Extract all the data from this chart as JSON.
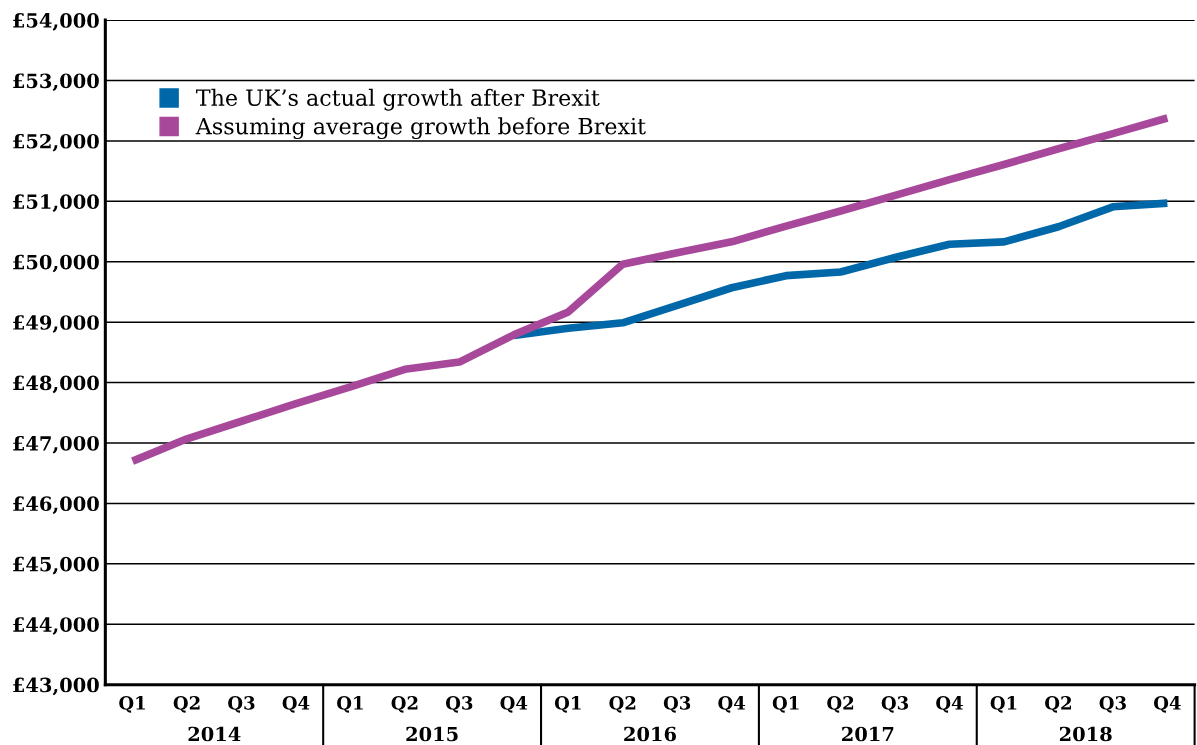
{
  "chart_data": {
    "type": "line",
    "categories": [
      "Q1",
      "Q2",
      "Q3",
      "Q4",
      "Q1",
      "Q2",
      "Q3",
      "Q4",
      "Q1",
      "Q2",
      "Q3",
      "Q4",
      "Q1",
      "Q2",
      "Q3",
      "Q4",
      "Q1",
      "Q2",
      "Q3",
      "Q4"
    ],
    "series": [
      {
        "name": "The UK’s actual growth after Brexit",
        "color": "#0068a8",
        "values": [
          null,
          null,
          null,
          null,
          null,
          null,
          null,
          48780,
          48900,
          48990,
          49280,
          49570,
          49770,
          49830,
          50070,
          50290,
          50330,
          50580,
          50910,
          50970
        ]
      },
      {
        "name": "Assuming average growth before Brexit",
        "color": "#a8489a",
        "values": [
          46700,
          47070,
          47360,
          47650,
          47930,
          48220,
          48340,
          48790,
          49170,
          49960,
          50150,
          50330,
          50590,
          50840,
          51100,
          51360,
          51610,
          51870,
          52120,
          52380
        ]
      }
    ],
    "ylim": [
      43000,
      54000
    ],
    "yticks": [
      {
        "value": 43000,
        "label": "£43,000"
      },
      {
        "value": 44000,
        "label": "£44,000"
      },
      {
        "value": 45000,
        "label": "£45,000"
      },
      {
        "value": 46000,
        "label": "£46,000"
      },
      {
        "value": 47000,
        "label": "£47,000"
      },
      {
        "value": 48000,
        "label": "£48,000"
      },
      {
        "value": 49000,
        "label": "£49,000"
      },
      {
        "value": 50000,
        "label": "£50,000"
      },
      {
        "value": 51000,
        "label": "£51,000"
      },
      {
        "value": 52000,
        "label": "£52,000"
      },
      {
        "value": 53000,
        "label": "£53,000"
      },
      {
        "value": 54000,
        "label": "£54,000"
      }
    ],
    "grid": "y",
    "legend": "top left",
    "annotations": [
      "2014",
      "2015",
      "2016",
      "2017",
      "2018"
    ]
  }
}
